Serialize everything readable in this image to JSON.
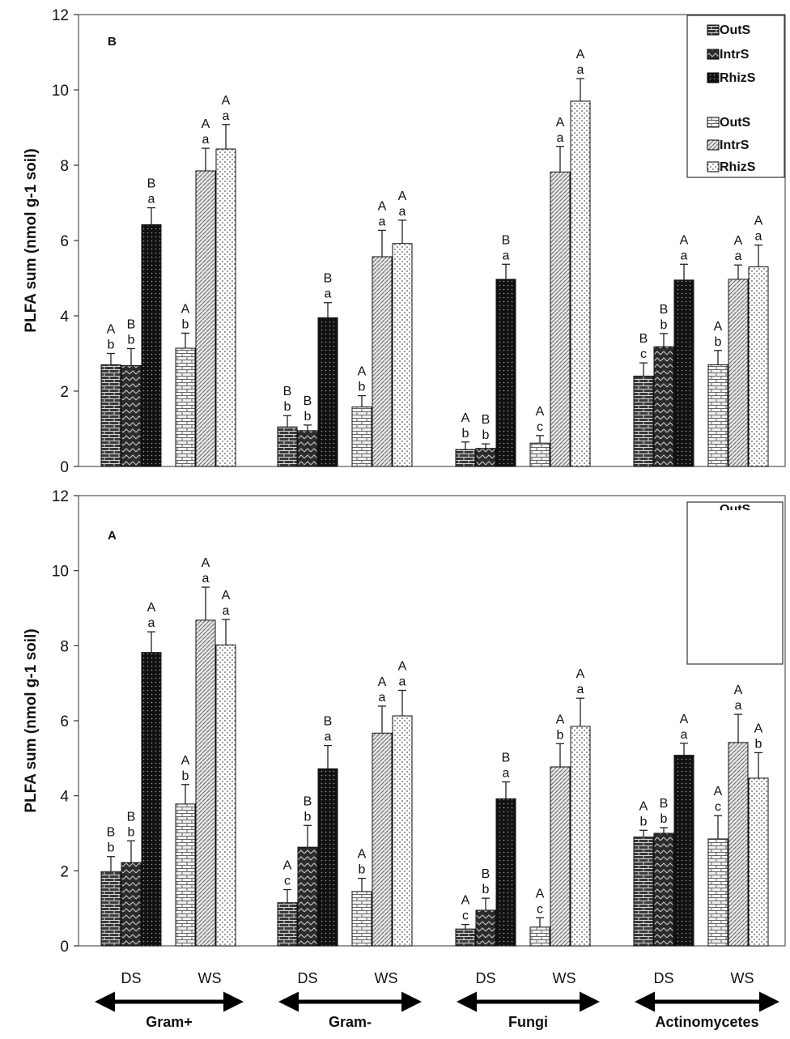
{
  "chart_data": [
    {
      "type": "bar",
      "panel_label": "B",
      "ylabel": "PLFA sum (nmol g-1 soil)",
      "ylim": [
        0,
        12
      ],
      "yticks": [
        0,
        2,
        4,
        6,
        8,
        10,
        12
      ],
      "categories": [
        "Gram+",
        "Gram-",
        "Fungi",
        "Actinomycetes"
      ],
      "series": [
        {
          "name": "OutS",
          "condition": "DS",
          "values": [
            2.7,
            1.05,
            0.45,
            2.4
          ],
          "errors": [
            0.3,
            0.3,
            0.2,
            0.35
          ],
          "letters_upper": [
            "A",
            "B",
            "A",
            "B"
          ],
          "letters_lower": [
            "b",
            "b",
            "b",
            "c"
          ]
        },
        {
          "name": "IntrS",
          "condition": "DS",
          "values": [
            2.68,
            0.95,
            0.48,
            3.18
          ],
          "errors": [
            0.45,
            0.15,
            0.12,
            0.35
          ],
          "letters_upper": [
            "B",
            "B",
            "B",
            "B"
          ],
          "letters_lower": [
            "b",
            "b",
            "b",
            "b"
          ]
        },
        {
          "name": "RhizS",
          "condition": "DS",
          "values": [
            6.42,
            3.95,
            4.97,
            4.95
          ],
          "errors": [
            0.45,
            0.4,
            0.4,
            0.42
          ],
          "letters_upper": [
            "B",
            "B",
            "B",
            "A"
          ],
          "letters_lower": [
            "a",
            "a",
            "a",
            "a"
          ]
        },
        {
          "name": "OutS",
          "condition": "WS",
          "values": [
            3.14,
            1.58,
            0.62,
            2.7
          ],
          "errors": [
            0.4,
            0.3,
            0.2,
            0.38
          ],
          "letters_upper": [
            "A",
            "A",
            "A",
            "A"
          ],
          "letters_lower": [
            "b",
            "b",
            "c",
            "b"
          ]
        },
        {
          "name": "IntrS",
          "condition": "WS",
          "values": [
            7.85,
            5.57,
            7.82,
            4.97
          ],
          "errors": [
            0.6,
            0.7,
            0.68,
            0.38
          ],
          "letters_upper": [
            "A",
            "A",
            "A",
            "A"
          ],
          "letters_lower": [
            "a",
            "a",
            "a",
            "a"
          ]
        },
        {
          "name": "RhizS",
          "condition": "WS",
          "values": [
            8.43,
            5.92,
            9.7,
            5.3
          ],
          "errors": [
            0.65,
            0.62,
            0.6,
            0.58
          ],
          "letters_upper": [
            "A",
            "A",
            "A",
            "A"
          ],
          "letters_lower": [
            "a",
            "a",
            "a",
            "a"
          ]
        }
      ],
      "legend": {
        "position": "top-right",
        "entries": [
          "OutS",
          "IntrS",
          "RhizS",
          "OutS",
          "IntrS",
          "RhizS"
        ]
      }
    },
    {
      "type": "bar",
      "panel_label": "A",
      "ylabel": "PLFA sum (nmol g-1 soil)",
      "ylim": [
        0,
        12
      ],
      "yticks": [
        0,
        2,
        4,
        6,
        8,
        10,
        12
      ],
      "categories": [
        "Gram+",
        "Gram-",
        "Fungi",
        "Actinomycetes"
      ],
      "series": [
        {
          "name": "OutS",
          "condition": "DS",
          "values": [
            1.98,
            1.15,
            0.45,
            2.9
          ],
          "errors": [
            0.4,
            0.35,
            0.12,
            0.18
          ],
          "letters_upper": [
            "B",
            "A",
            "A",
            "A"
          ],
          "letters_lower": [
            "b",
            "c",
            "c",
            "b"
          ]
        },
        {
          "name": "IntrS",
          "condition": "DS",
          "values": [
            2.22,
            2.63,
            0.95,
            3.0
          ],
          "errors": [
            0.58,
            0.58,
            0.32,
            0.15
          ],
          "letters_upper": [
            "B",
            "B",
            "B",
            "B"
          ],
          "letters_lower": [
            "b",
            "b",
            "b",
            "b"
          ]
        },
        {
          "name": "RhizS",
          "condition": "DS",
          "values": [
            7.82,
            4.72,
            3.92,
            5.08
          ],
          "errors": [
            0.55,
            0.62,
            0.45,
            0.32
          ],
          "letters_upper": [
            "A",
            "B",
            "B",
            "A"
          ],
          "letters_lower": [
            "a",
            "a",
            "a",
            "a"
          ]
        },
        {
          "name": "OutS",
          "condition": "WS",
          "values": [
            3.78,
            1.45,
            0.5,
            2.85
          ],
          "errors": [
            0.52,
            0.35,
            0.25,
            0.62
          ],
          "letters_upper": [
            "A",
            "A",
            "A",
            "A"
          ],
          "letters_lower": [
            "b",
            "b",
            "c",
            "c"
          ]
        },
        {
          "name": "IntrS",
          "condition": "WS",
          "values": [
            8.68,
            5.67,
            4.77,
            5.42
          ],
          "errors": [
            0.88,
            0.72,
            0.62,
            0.75
          ],
          "letters_upper": [
            "A",
            "A",
            "A",
            "A"
          ],
          "letters_lower": [
            "a",
            "a",
            "b",
            "a"
          ]
        },
        {
          "name": "RhizS",
          "condition": "WS",
          "values": [
            8.02,
            6.13,
            5.85,
            4.47
          ],
          "errors": [
            0.68,
            0.68,
            0.75,
            0.68
          ],
          "letters_upper": [
            "A",
            "A",
            "A",
            "A"
          ],
          "letters_lower": [
            "a",
            "a",
            "a",
            "b"
          ]
        }
      ],
      "legend": {
        "position": "top-right",
        "entries": [
          "OutS"
        ]
      }
    }
  ],
  "x_axis": {
    "conditions": [
      "DS",
      "WS",
      "DS",
      "WS",
      "DS",
      "WS",
      "DS",
      "WS"
    ],
    "groups": [
      "Gram+",
      "Gram-",
      "Fungi",
      "Actinomycetes"
    ]
  },
  "colors": {
    "axis": "#333333",
    "text": "#111111",
    "dark_fill": "#1a1a1a",
    "mid_fill": "#555555",
    "light_fill": "#dddddd"
  }
}
